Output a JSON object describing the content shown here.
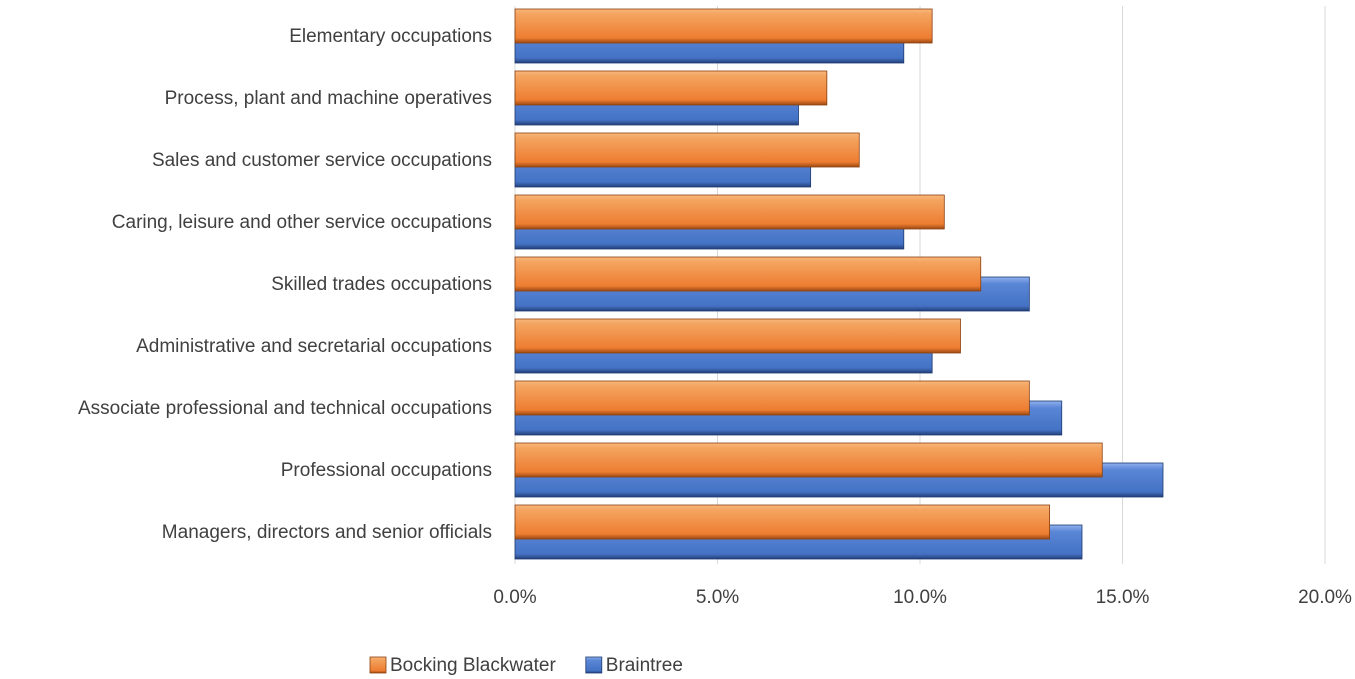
{
  "chart_data": {
    "type": "hbar",
    "categories": [
      "Elementary occupations",
      "Process, plant and machine operatives",
      "Sales and customer service occupations",
      "Caring, leisure and other service occupations",
      "Skilled trades occupations",
      "Administrative and secretarial occupations",
      "Associate professional and technical occupations",
      "Professional occupations",
      "Managers, directors and senior officials"
    ],
    "series": [
      {
        "name": "Bocking Blackwater",
        "color": "#ed7d31",
        "values": [
          10.3,
          7.7,
          8.5,
          10.6,
          11.5,
          11.0,
          12.7,
          14.5,
          13.2
        ]
      },
      {
        "name": "Braintree",
        "color": "#4472c4",
        "values": [
          9.6,
          7.0,
          7.3,
          9.6,
          12.7,
          10.3,
          13.5,
          16.0,
          14.0
        ]
      }
    ],
    "xlim": [
      0,
      20
    ],
    "xticks": [
      {
        "value": 0,
        "label": "0.0%"
      },
      {
        "value": 5,
        "label": "5.0%"
      },
      {
        "value": 10,
        "label": "10.0%"
      },
      {
        "value": 15,
        "label": "15.0%"
      },
      {
        "value": 20,
        "label": "20.0%"
      }
    ],
    "grid": true,
    "legend": "bottom"
  }
}
